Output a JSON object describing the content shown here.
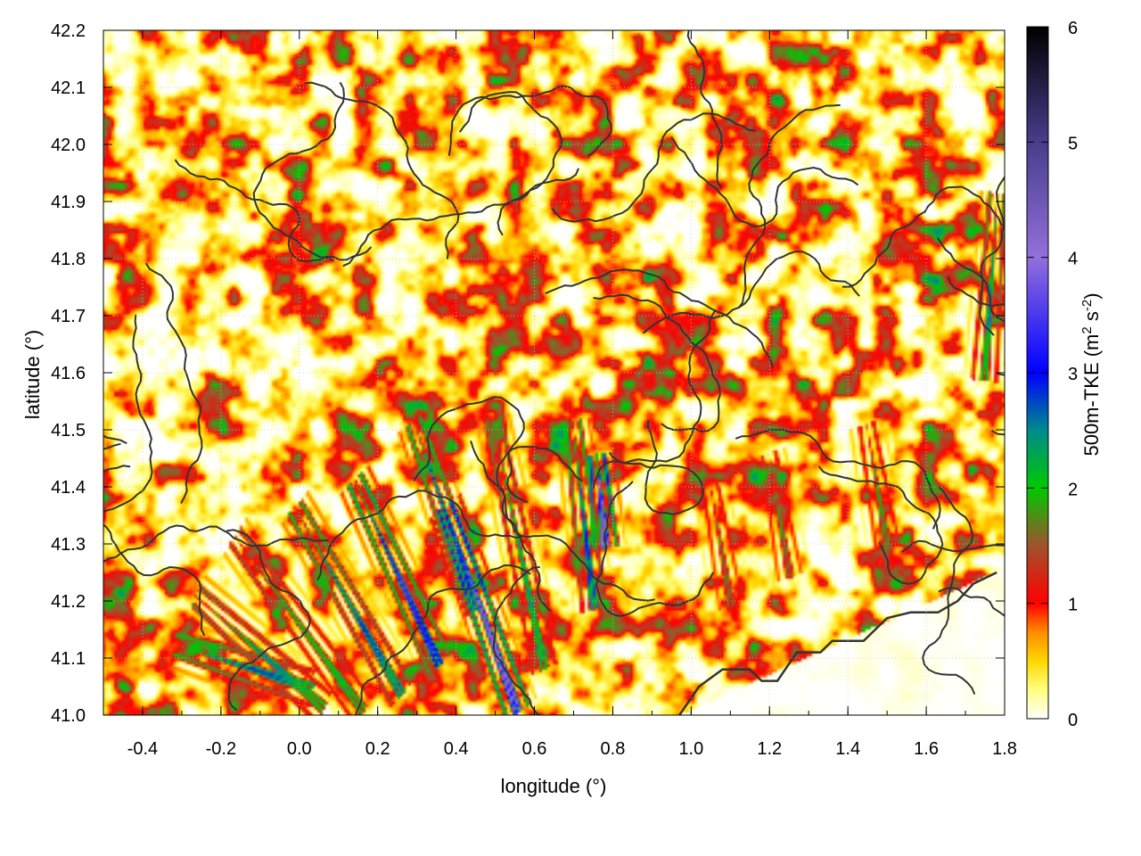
{
  "chart_data": {
    "type": "heatmap",
    "title": "",
    "xlabel": "longitude (°)",
    "ylabel": "latitude (°)",
    "colorbar_label_parts": [
      "500m-TKE (m",
      "2",
      " s",
      "-2",
      ")"
    ],
    "xlim": [
      -0.5,
      1.8
    ],
    "ylim": [
      41.0,
      42.2
    ],
    "clim": [
      0,
      6
    ],
    "x_ticks": [
      -0.4,
      -0.2,
      0.0,
      0.2,
      0.4,
      0.6,
      0.8,
      1.0,
      1.2,
      1.4,
      1.6,
      1.8
    ],
    "x_tick_labels": [
      "-0.4",
      "-0.2",
      "0.0",
      "0.2",
      "0.4",
      "0.6",
      "0.8",
      "1.0",
      "1.2",
      "1.4",
      "1.6",
      "1.8"
    ],
    "y_ticks": [
      41.0,
      41.1,
      41.2,
      41.3,
      41.4,
      41.5,
      41.6,
      41.7,
      41.8,
      41.9,
      42.0,
      42.1,
      42.2
    ],
    "y_tick_labels": [
      "41.0",
      "41.1",
      "41.2",
      "41.3",
      "41.4",
      "41.5",
      "41.6",
      "41.7",
      "41.8",
      "41.9",
      "42.0",
      "42.1",
      "42.2"
    ],
    "colorbar_ticks": [
      0,
      1,
      2,
      3,
      4,
      5,
      6
    ],
    "colorbar_tick_labels": [
      "0",
      "1",
      "2",
      "3",
      "4",
      "5",
      "6"
    ],
    "colormap": [
      {
        "v": 0.0,
        "c": "#ffffff"
      },
      {
        "v": 0.25,
        "c": "#ffff80"
      },
      {
        "v": 0.5,
        "c": "#ffd700"
      },
      {
        "v": 0.75,
        "c": "#ff8c00"
      },
      {
        "v": 1.0,
        "c": "#ff0000"
      },
      {
        "v": 1.5,
        "c": "#a0522d"
      },
      {
        "v": 2.0,
        "c": "#00c800"
      },
      {
        "v": 2.5,
        "c": "#008b8b"
      },
      {
        "v": 3.0,
        "c": "#0000ff"
      },
      {
        "v": 4.0,
        "c": "#9370db"
      },
      {
        "v": 5.0,
        "c": "#483d8b"
      },
      {
        "v": 6.0,
        "c": "#000000"
      }
    ],
    "grid": true,
    "contour_color": "#333333",
    "features": {
      "calm_region_corner": [
        [
          1.0,
          41.0
        ],
        [
          1.8,
          41.0
        ],
        [
          1.8,
          41.25
        ],
        [
          1.0,
          41.0
        ]
      ],
      "coastline": [
        [
          0.97,
          41.0
        ],
        [
          1.02,
          41.05
        ],
        [
          1.08,
          41.08
        ],
        [
          1.15,
          41.08
        ],
        [
          1.18,
          41.06
        ],
        [
          1.22,
          41.06
        ],
        [
          1.27,
          41.11
        ],
        [
          1.33,
          41.11
        ],
        [
          1.36,
          41.13
        ],
        [
          1.44,
          41.13
        ],
        [
          1.5,
          41.17
        ],
        [
          1.56,
          41.18
        ],
        [
          1.63,
          41.18
        ],
        [
          1.68,
          41.2
        ],
        [
          1.72,
          41.23
        ],
        [
          1.75,
          41.24
        ],
        [
          1.78,
          41.25
        ]
      ],
      "streaks": [
        {
          "x0": 0.05,
          "y0": 41.02,
          "x1": -0.25,
          "y1": 41.2,
          "v": 3.0
        },
        {
          "x0": 0.15,
          "y0": 41.02,
          "x1": -0.15,
          "y1": 41.3,
          "v": 2.6
        },
        {
          "x0": 0.25,
          "y0": 41.05,
          "x1": 0.0,
          "y1": 41.35,
          "v": 3.3
        },
        {
          "x0": 0.35,
          "y0": 41.1,
          "x1": 0.15,
          "y1": 41.4,
          "v": 4.0
        },
        {
          "x0": 0.45,
          "y0": 41.2,
          "x1": 0.3,
          "y1": 41.5,
          "v": 3.6
        },
        {
          "x0": 0.55,
          "y0": 41.02,
          "x1": 0.38,
          "y1": 41.35,
          "v": 5.2
        },
        {
          "x0": 0.62,
          "y0": 41.1,
          "x1": 0.5,
          "y1": 41.5,
          "v": 2.8
        },
        {
          "x0": 0.75,
          "y0": 41.2,
          "x1": 0.7,
          "y1": 41.5,
          "v": 3.4
        },
        {
          "x0": 0.78,
          "y0": 41.3,
          "x1": 0.76,
          "y1": 41.45,
          "v": 5.0
        },
        {
          "x0": 0.02,
          "y0": 41.05,
          "x1": -0.3,
          "y1": 41.12,
          "v": 3.2
        },
        {
          "x0": 1.1,
          "y0": 41.2,
          "x1": 1.05,
          "y1": 41.4,
          "v": 2.0
        },
        {
          "x0": 1.25,
          "y0": 41.25,
          "x1": 1.2,
          "y1": 41.45,
          "v": 2.1
        },
        {
          "x0": 1.5,
          "y0": 41.3,
          "x1": 1.45,
          "y1": 41.5,
          "v": 2.2
        },
        {
          "x0": 1.75,
          "y0": 41.6,
          "x1": 1.78,
          "y1": 41.9,
          "v": 3.0
        }
      ]
    }
  }
}
